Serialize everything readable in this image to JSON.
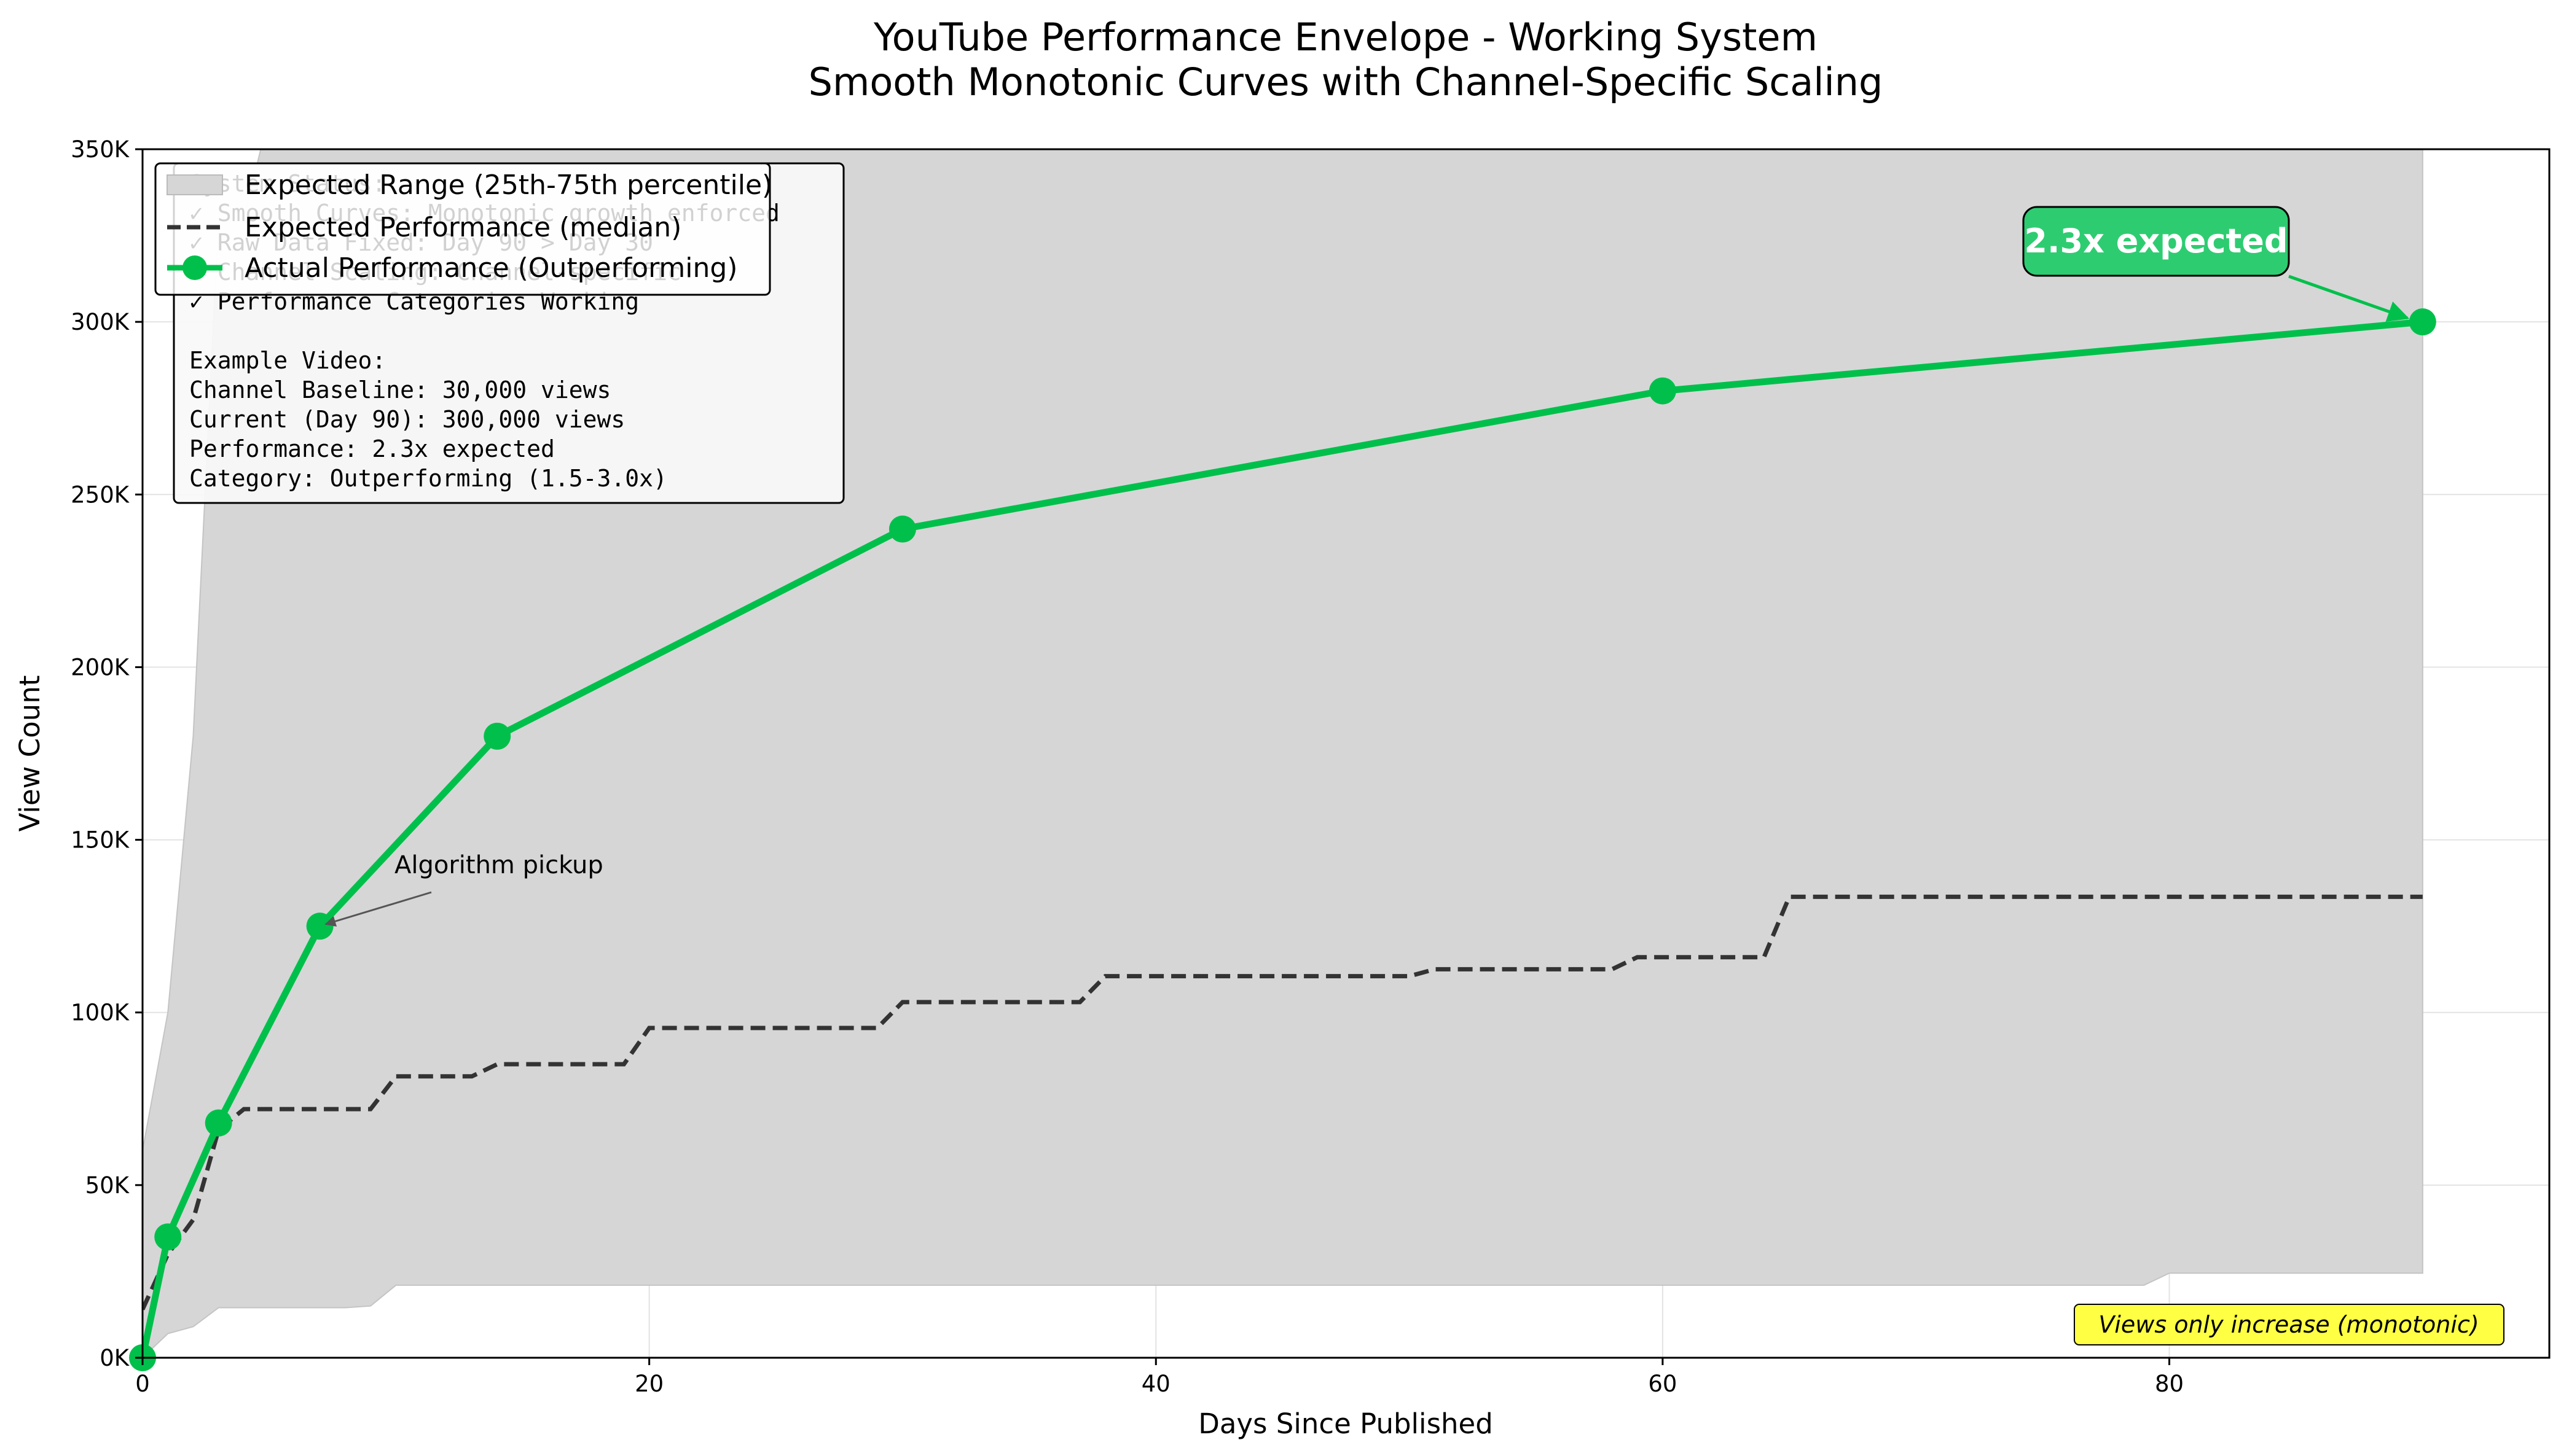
{
  "chart_data": {
    "type": "line",
    "title": "YouTube Performance Envelope - Working System",
    "subtitle": "Smooth Monotonic Curves with Channel-Specific Scaling",
    "xlabel": "Days Since Published",
    "ylabel": "View Count",
    "xlim": [
      0,
      95
    ],
    "ylim": [
      0,
      350000
    ],
    "x_ticks": [
      0,
      20,
      40,
      60,
      80
    ],
    "y_ticks": [
      0,
      50000,
      100000,
      150000,
      200000,
      250000,
      300000,
      350000
    ],
    "y_tick_labels": [
      "0K",
      "50K",
      "100K",
      "150K",
      "200K",
      "250K",
      "300K",
      "350K"
    ],
    "grid": true,
    "legend_position": "upper-left",
    "series": [
      {
        "name": "Expected Range (25th-75th percentile)",
        "kind": "band",
        "color": "#d6d6d6",
        "x": [
          0,
          1,
          2,
          3,
          4,
          5,
          6,
          7,
          8,
          9,
          10,
          11,
          12,
          13,
          14,
          20,
          30,
          40,
          50,
          60,
          70,
          79,
          80,
          90
        ],
        "lower": [
          0,
          7000,
          9000,
          14500,
          14500,
          14500,
          14500,
          14500,
          14500,
          15000,
          21000,
          21000,
          21000,
          21000,
          21000,
          21000,
          21000,
          21000,
          21000,
          21000,
          21000,
          21000,
          24500,
          24500
        ],
        "upper": [
          60000,
          100000,
          180000,
          330000,
          330000,
          360000,
          400000,
          400000,
          400000,
          400000,
          400000,
          400000,
          400000,
          400000,
          400000,
          400000,
          400000,
          400000,
          400000,
          400000,
          400000,
          400000,
          400000,
          400000
        ]
      },
      {
        "name": "Expected Performance (median)",
        "kind": "line",
        "style": "dashed",
        "color": "#333333",
        "x": [
          0,
          1,
          2,
          3,
          4,
          9,
          10,
          13,
          14,
          19,
          20,
          29,
          30,
          37,
          38,
          50,
          51,
          58,
          59,
          64,
          65,
          90
        ],
        "y": [
          14000,
          30000,
          40000,
          66000,
          72000,
          72000,
          81500,
          81500,
          85000,
          85000,
          95500,
          95500,
          103000,
          103000,
          110500,
          110500,
          112500,
          112500,
          116000,
          116000,
          133500,
          133500
        ]
      },
      {
        "name": "Actual Performance (Outperforming)",
        "kind": "line",
        "style": "solid",
        "marker": "circle",
        "color": "#00c04b",
        "x": [
          0,
          1,
          3,
          7,
          14,
          30,
          60,
          90
        ],
        "y": [
          0,
          35000,
          68000,
          125000,
          180000,
          240000,
          280000,
          300000
        ]
      }
    ],
    "annotations": [
      {
        "text": "2.3x expected",
        "x": 90,
        "y": 300000,
        "style": "callout",
        "color": "#2ecc71"
      },
      {
        "text": "Algorithm pickup",
        "x": 7,
        "y": 125000,
        "style": "arrow"
      },
      {
        "text": "Views only increase (monotonic)",
        "style": "note",
        "color": "#ffff44"
      }
    ],
    "status_box": {
      "lines": [
        "System Status:",
        "✓ Smooth Curves: Monotonic growth enforced",
        "✓ Raw Data Fixed: Day 90 > Day 30",
        "✓ Channel Scaling: Channel-specific",
        "✓ Performance Categories Working",
        "",
        "Example Video:",
        "Channel Baseline: 30,000 views",
        "Current (Day 90): 300,000 views",
        "Performance: 2.3x expected",
        "Category: Outperforming (1.5-3.0x)"
      ]
    }
  }
}
